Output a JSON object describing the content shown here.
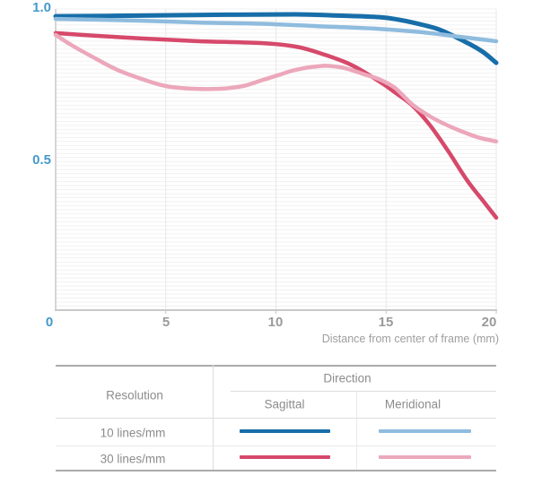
{
  "chart_data": {
    "type": "line",
    "title": "",
    "xlabel": "Distance from center of frame (mm)",
    "ylabel": "",
    "xlim": [
      0,
      20
    ],
    "ylim": [
      0,
      1.0
    ],
    "x_ticks": [
      0,
      5,
      10,
      15,
      20
    ],
    "y_tick_labels": [
      "1.0",
      "0.5",
      "0"
    ],
    "grid": "fine horizontal lines, vertical lines at each x tick",
    "legend_position": "table below chart",
    "series": [
      {
        "name": "10 lines/mm Sagittal",
        "color": "#176EA9",
        "stroke_width": 5,
        "x": [
          0,
          3.9,
          7.7,
          10.9,
          12.5,
          14.7,
          15.6,
          16.2,
          17.4,
          18.7,
          19.4,
          20
        ],
        "y": [
          0.976,
          0.978,
          0.981,
          0.982,
          0.979,
          0.973,
          0.964,
          0.955,
          0.932,
          0.887,
          0.857,
          0.821
        ]
      },
      {
        "name": "10 lines/mm Meridional",
        "color": "#8FBCDE",
        "stroke_width": 4.5,
        "x": [
          0,
          3.9,
          6.5,
          9.3,
          11.9,
          14.7,
          16.6,
          18.3,
          20
        ],
        "y": [
          0.967,
          0.961,
          0.955,
          0.951,
          0.943,
          0.934,
          0.923,
          0.908,
          0.893
        ]
      },
      {
        "name": "30 lines/mm Sagittal",
        "color": "#D6496B",
        "stroke_width": 4.5,
        "x": [
          0,
          1.8,
          3.9,
          6.5,
          9.3,
          10.9,
          12.1,
          13.4,
          14.7,
          15.4,
          16.2,
          17.0,
          17.8,
          18.7,
          19.5,
          20
        ],
        "y": [
          0.92,
          0.911,
          0.902,
          0.893,
          0.887,
          0.875,
          0.851,
          0.815,
          0.759,
          0.723,
          0.679,
          0.613,
          0.53,
          0.429,
          0.354,
          0.307
        ]
      },
      {
        "name": "30 lines/mm Meridional",
        "color": "#ECA7BB",
        "stroke_width": 4.5,
        "x": [
          0,
          0.7,
          1.8,
          2.8,
          3.9,
          5.0,
          6.2,
          7.5,
          8.5,
          9.3,
          10.1,
          10.9,
          12.1,
          12.8,
          13.4,
          14.0,
          14.7,
          15.4,
          16.2,
          17.0,
          17.8,
          18.7,
          19.3,
          20
        ],
        "y": [
          0.914,
          0.881,
          0.836,
          0.798,
          0.768,
          0.744,
          0.735,
          0.735,
          0.744,
          0.762,
          0.78,
          0.798,
          0.811,
          0.808,
          0.798,
          0.783,
          0.766,
          0.738,
          0.682,
          0.643,
          0.613,
          0.586,
          0.571,
          0.56
        ]
      }
    ]
  },
  "axis": {
    "y_label_top": "1.0",
    "y_label_mid": "0.5",
    "x_tick_labels": [
      "0",
      "5",
      "10",
      "15",
      "20"
    ],
    "accent_color": "#4599CB",
    "tick_color": "#9a9a9a"
  },
  "legend_table": {
    "resolution_header": "Resolution",
    "direction_header": "Direction",
    "col_sagittal": "Sagittal",
    "col_meridional": "Meridional",
    "rows": [
      {
        "label": "10 lines/mm",
        "sagittal_color": "#176EA9",
        "meridional_color": "#8FBCDE"
      },
      {
        "label": "30 lines/mm",
        "sagittal_color": "#D6496B",
        "meridional_color": "#ECA7BB"
      }
    ]
  },
  "colors": {
    "background": "#ffffff",
    "axis_line": "#c9c9c9",
    "grid_h": "#f1f1f1",
    "grid_v": "#e7e7e7",
    "table_border_strong": "#ababab",
    "table_border_light": "#dddddd",
    "text_gray": "#8c8c8c"
  }
}
